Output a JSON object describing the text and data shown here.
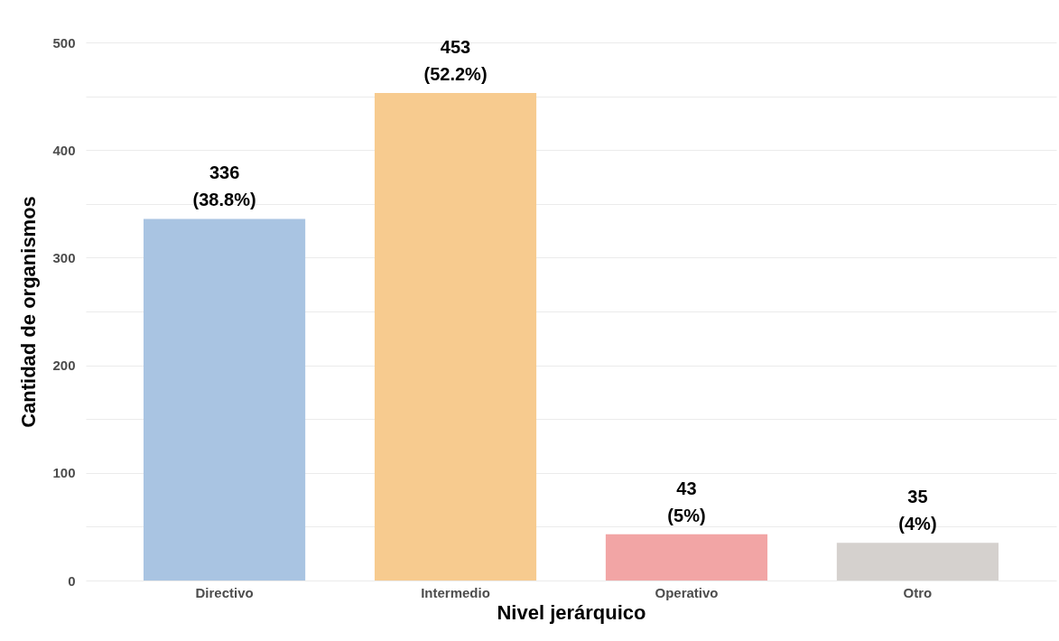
{
  "chart_data": {
    "type": "bar",
    "xlabel": "Nivel jerárquico",
    "ylabel": "Cantidad de organismos",
    "categories": [
      "Directivo",
      "Intermedio",
      "Operativo",
      "Otro"
    ],
    "values": [
      336,
      453,
      43,
      35
    ],
    "colors": [
      "#a9c4e2",
      "#f7cb8f",
      "#f2a5a5",
      "#d5d1ce"
    ],
    "value_labels": [
      "336\n(38.8%)",
      "453\n(52.2%)",
      "43\n(5%)",
      "35\n(4%)"
    ],
    "ylim": [
      0,
      500
    ],
    "yticks": [
      0,
      {
        "value": 50,
        "label": null
      },
      100,
      {
        "value": 150,
        "label": null
      },
      200,
      {
        "value": 250,
        "label": null
      },
      300,
      {
        "value": 350,
        "label": null
      },
      400,
      {
        "value": 450,
        "label": null
      },
      500
    ],
    "grid": "y"
  }
}
